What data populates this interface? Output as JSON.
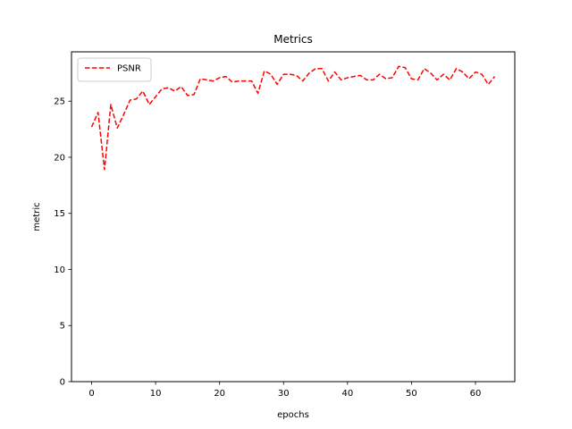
{
  "chart_data": {
    "type": "line",
    "title": "Metrics",
    "xlabel": "epochs",
    "ylabel": "metric",
    "xlim": [
      -3.15,
      66.15
    ],
    "ylim": [
      0,
      29.4
    ],
    "xticks": [
      0,
      10,
      20,
      30,
      40,
      50,
      60
    ],
    "yticks": [
      0,
      5,
      10,
      15,
      20,
      25
    ],
    "grid": false,
    "legend": {
      "position": "top-left"
    },
    "series": [
      {
        "name": "PSNR",
        "color": "#ff0000",
        "style": "dashed",
        "x": [
          0,
          1,
          2,
          3,
          4,
          5,
          6,
          7,
          8,
          9,
          10,
          11,
          12,
          13,
          14,
          15,
          16,
          17,
          18,
          19,
          20,
          21,
          22,
          23,
          24,
          25,
          26,
          27,
          28,
          29,
          30,
          31,
          32,
          33,
          34,
          35,
          36,
          37,
          38,
          39,
          40,
          41,
          42,
          43,
          44,
          45,
          46,
          47,
          48,
          49,
          50,
          51,
          52,
          53,
          54,
          55,
          56,
          57,
          58,
          59,
          60,
          61,
          62,
          63
        ],
        "values": [
          22.7,
          24.0,
          18.9,
          24.7,
          22.6,
          23.8,
          25.1,
          25.2,
          25.9,
          24.7,
          25.4,
          26.1,
          26.2,
          25.9,
          26.3,
          25.5,
          25.6,
          27.0,
          26.9,
          26.8,
          27.1,
          27.2,
          26.7,
          26.8,
          26.8,
          26.8,
          25.7,
          27.7,
          27.4,
          26.5,
          27.4,
          27.4,
          27.3,
          26.8,
          27.5,
          27.9,
          27.9,
          26.8,
          27.6,
          26.9,
          27.1,
          27.2,
          27.3,
          26.9,
          26.9,
          27.4,
          27.0,
          27.1,
          28.1,
          28.0,
          27.0,
          26.9,
          27.9,
          27.5,
          26.9,
          27.4,
          26.9,
          27.9,
          27.6,
          27.0,
          27.6,
          27.4,
          26.5,
          27.2
        ]
      }
    ]
  }
}
